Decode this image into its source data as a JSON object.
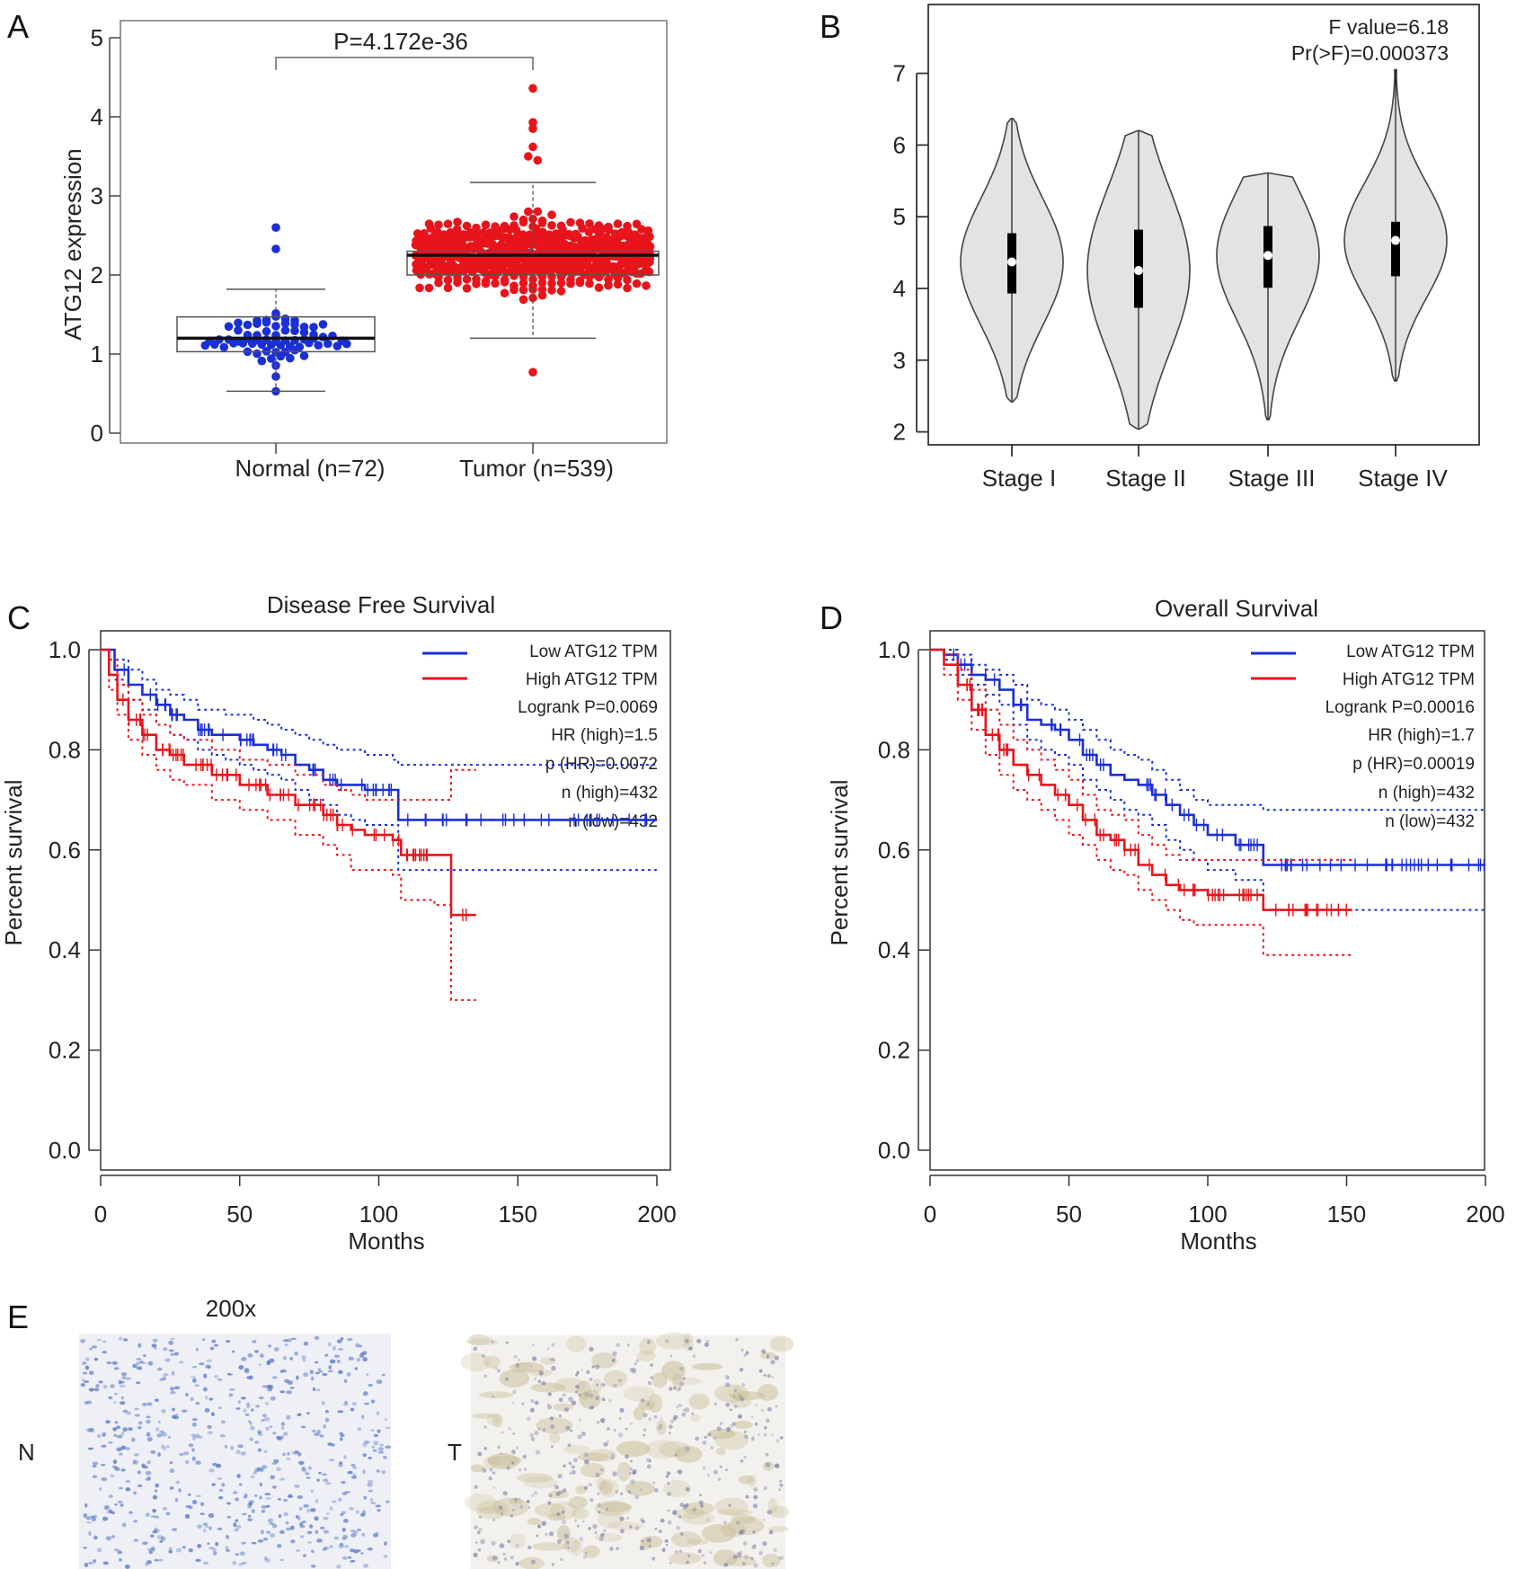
{
  "figure": {
    "panel_letters": {
      "a": "A",
      "b": "B",
      "c": "C",
      "d": "D",
      "e": "E"
    }
  },
  "chart_data": [
    {
      "panel": "A",
      "type": "scatter",
      "subtype": "beeswarm-boxplot",
      "title": "",
      "ylabel": "ATG12 expression",
      "ylim": [
        -0.15,
        5.2
      ],
      "yticks": [
        0,
        1,
        2,
        3,
        4,
        5
      ],
      "categories": [
        "Normal (n=72)",
        "Tumor (n=539)"
      ],
      "annotation": "P=4.172e-36",
      "colors": {
        "Normal (n=72)": "#1a2fd6",
        "Tumor (n=539)": "#e8141b"
      },
      "grid": false,
      "boxes": [
        {
          "category": "Normal (n=72)",
          "whisker_low": 0.53,
          "q1": 1.03,
          "median": 1.2,
          "q3": 1.47,
          "whisker_high": 1.82
        },
        {
          "category": "Tumor (n=539)",
          "whisker_low": 1.2,
          "q1": 2.0,
          "median": 2.25,
          "q3": 2.3,
          "whisker_high": 3.17
        }
      ],
      "points": {
        "Normal (n=72)": {
          "n": 72,
          "min": 0.53,
          "max": 2.6,
          "notable": [
            2.6,
            2.33
          ]
        },
        "Tumor (n=539)": {
          "n": 539,
          "min": 0.77,
          "max": 4.36,
          "notable": [
            4.36,
            3.93,
            3.85,
            3.62,
            3.5,
            3.45
          ]
        }
      }
    },
    {
      "panel": "B",
      "type": "violin",
      "title": "",
      "ylim": [
        1.8,
        7.6
      ],
      "yticks": [
        2,
        3,
        4,
        5,
        6,
        7
      ],
      "categories": [
        "Stage I",
        "Stage II",
        "Stage III",
        "Stage IV"
      ],
      "annotation_lines": [
        "F value=6.18",
        "Pr(>F)=0.000373"
      ],
      "fill": "#e3e3e3",
      "grid": false,
      "series": [
        {
          "name": "Stage I",
          "min": 2.42,
          "q1": 3.93,
          "median": 4.37,
          "q3": 4.77,
          "max": 6.37
        },
        {
          "name": "Stage II",
          "min": 2.04,
          "q1": 3.73,
          "median": 4.25,
          "q3": 4.82,
          "max": 6.2
        },
        {
          "name": "Stage III",
          "min": 2.17,
          "q1": 4.01,
          "median": 4.46,
          "q3": 4.87,
          "max": 5.61
        },
        {
          "name": "Stage IV",
          "min": 2.71,
          "q1": 4.17,
          "median": 4.67,
          "q3": 4.93,
          "max": 7.05
        }
      ]
    },
    {
      "panel": "C",
      "type": "line",
      "subtype": "kaplan-meier",
      "title": "Disease Free Survival",
      "xlabel": "Months",
      "ylabel": "Percent survival",
      "xlim": [
        0,
        205
      ],
      "ylim": [
        0,
        1.0
      ],
      "xticks": [
        0,
        50,
        100,
        150,
        200
      ],
      "yticks": [
        "0.0",
        "0.2",
        "0.4",
        "0.6",
        "0.8",
        "1.0"
      ],
      "legend_position": "top-right",
      "stats": [
        "Logrank P=0.0069",
        "HR (high)=1.5",
        "p (HR)=0.0072",
        "n (high)=432",
        "n (low)=432"
      ],
      "series": [
        {
          "name": "Low ATG12 TPM",
          "color": "#1a2fd6",
          "x": [
            0,
            5,
            10,
            15,
            20,
            25,
            30,
            35,
            40,
            45,
            50,
            55,
            60,
            65,
            70,
            75,
            80,
            85,
            90,
            95,
            100,
            105,
            107,
            110,
            120,
            130,
            140,
            150,
            160,
            170,
            180,
            190,
            200
          ],
          "y": [
            1.0,
            0.96,
            0.93,
            0.91,
            0.89,
            0.87,
            0.86,
            0.84,
            0.83,
            0.83,
            0.82,
            0.81,
            0.8,
            0.79,
            0.77,
            0.76,
            0.74,
            0.73,
            0.73,
            0.72,
            0.72,
            0.72,
            0.66,
            0.66,
            0.66,
            0.66,
            0.66,
            0.66,
            0.66,
            0.66,
            0.66,
            0.66,
            0.66
          ],
          "ci_upper": [
            1.0,
            0.98,
            0.96,
            0.94,
            0.92,
            0.91,
            0.9,
            0.88,
            0.88,
            0.87,
            0.87,
            0.86,
            0.85,
            0.84,
            0.83,
            0.82,
            0.81,
            0.8,
            0.8,
            0.79,
            0.79,
            0.78,
            0.77,
            0.77,
            0.77,
            0.77,
            0.77,
            0.77,
            0.77,
            0.77,
            0.77,
            0.77,
            0.77
          ],
          "ci_lower": [
            1.0,
            0.94,
            0.9,
            0.88,
            0.85,
            0.83,
            0.82,
            0.8,
            0.79,
            0.78,
            0.77,
            0.76,
            0.75,
            0.74,
            0.72,
            0.7,
            0.69,
            0.67,
            0.66,
            0.65,
            0.65,
            0.65,
            0.56,
            0.56,
            0.56,
            0.56,
            0.56,
            0.56,
            0.56,
            0.56,
            0.56,
            0.56,
            0.56
          ]
        },
        {
          "name": "High ATG12 TPM",
          "color": "#e8141b",
          "x": [
            0,
            3,
            6,
            10,
            15,
            20,
            25,
            30,
            40,
            50,
            60,
            70,
            80,
            85,
            90,
            95,
            100,
            105,
            108,
            115,
            120,
            125,
            126,
            130,
            135
          ],
          "y": [
            1.0,
            0.95,
            0.9,
            0.86,
            0.83,
            0.8,
            0.79,
            0.77,
            0.75,
            0.73,
            0.71,
            0.69,
            0.67,
            0.65,
            0.64,
            0.63,
            0.63,
            0.62,
            0.59,
            0.59,
            0.59,
            0.59,
            0.47,
            0.47,
            0.47
          ],
          "ci_upper": [
            1.0,
            0.98,
            0.93,
            0.9,
            0.87,
            0.85,
            0.83,
            0.82,
            0.8,
            0.78,
            0.77,
            0.75,
            0.73,
            0.72,
            0.71,
            0.7,
            0.7,
            0.7,
            0.7,
            0.7,
            0.7,
            0.7,
            0.76,
            0.76,
            0.76
          ],
          "ci_lower": [
            1.0,
            0.92,
            0.87,
            0.82,
            0.79,
            0.76,
            0.74,
            0.73,
            0.7,
            0.68,
            0.66,
            0.63,
            0.61,
            0.59,
            0.56,
            0.56,
            0.56,
            0.55,
            0.5,
            0.5,
            0.49,
            0.49,
            0.3,
            0.3,
            0.3
          ]
        }
      ]
    },
    {
      "panel": "D",
      "type": "line",
      "subtype": "kaplan-meier",
      "title": "Overall Survival",
      "xlabel": "Months",
      "ylabel": "Percent survival",
      "xlim": [
        0,
        205
      ],
      "ylim": [
        0,
        1.0
      ],
      "xticks": [
        0,
        50,
        100,
        150,
        200
      ],
      "yticks": [
        "0.0",
        "0.2",
        "0.4",
        "0.6",
        "0.8",
        "1.0"
      ],
      "legend_position": "top-right",
      "stats": [
        "Logrank P=0.00016",
        "HR (high)=1.7",
        "p (HR)=0.00019",
        "n (high)=432",
        "n (low)=432"
      ],
      "series": [
        {
          "name": "Low ATG12 TPM",
          "color": "#1a2fd6",
          "x": [
            0,
            5,
            10,
            15,
            20,
            25,
            30,
            35,
            40,
            45,
            50,
            55,
            60,
            65,
            70,
            75,
            80,
            85,
            90,
            95,
            100,
            110,
            118,
            120,
            130,
            140,
            150,
            160,
            170,
            180,
            190,
            200
          ],
          "y": [
            1.0,
            0.99,
            0.97,
            0.95,
            0.94,
            0.92,
            0.89,
            0.86,
            0.85,
            0.84,
            0.82,
            0.79,
            0.77,
            0.75,
            0.74,
            0.73,
            0.71,
            0.69,
            0.67,
            0.65,
            0.63,
            0.61,
            0.61,
            0.57,
            0.57,
            0.57,
            0.57,
            0.57,
            0.57,
            0.57,
            0.57,
            0.57
          ],
          "ci_upper": [
            1.0,
            1.0,
            0.99,
            0.97,
            0.96,
            0.95,
            0.93,
            0.9,
            0.89,
            0.88,
            0.86,
            0.84,
            0.82,
            0.8,
            0.79,
            0.78,
            0.76,
            0.74,
            0.72,
            0.7,
            0.69,
            0.69,
            0.69,
            0.68,
            0.68,
            0.68,
            0.68,
            0.68,
            0.68,
            0.68,
            0.68,
            0.68
          ],
          "ci_lower": [
            1.0,
            0.98,
            0.95,
            0.93,
            0.91,
            0.89,
            0.85,
            0.82,
            0.8,
            0.79,
            0.77,
            0.74,
            0.72,
            0.7,
            0.68,
            0.67,
            0.65,
            0.62,
            0.6,
            0.58,
            0.56,
            0.54,
            0.54,
            0.48,
            0.48,
            0.48,
            0.48,
            0.48,
            0.48,
            0.48,
            0.48,
            0.48
          ]
        },
        {
          "name": "High ATG12 TPM",
          "color": "#e8141b",
          "x": [
            0,
            5,
            10,
            15,
            20,
            25,
            30,
            35,
            40,
            45,
            50,
            55,
            60,
            65,
            70,
            75,
            80,
            85,
            90,
            95,
            100,
            110,
            119,
            120,
            130,
            140,
            150,
            152
          ],
          "y": [
            1.0,
            0.97,
            0.93,
            0.88,
            0.83,
            0.8,
            0.77,
            0.75,
            0.73,
            0.71,
            0.69,
            0.66,
            0.63,
            0.62,
            0.6,
            0.57,
            0.55,
            0.53,
            0.52,
            0.52,
            0.51,
            0.51,
            0.51,
            0.48,
            0.48,
            0.48,
            0.48,
            0.48
          ],
          "ci_upper": [
            1.0,
            0.99,
            0.96,
            0.92,
            0.88,
            0.85,
            0.82,
            0.8,
            0.78,
            0.76,
            0.74,
            0.71,
            0.68,
            0.67,
            0.66,
            0.63,
            0.61,
            0.59,
            0.58,
            0.58,
            0.58,
            0.58,
            0.58,
            0.58,
            0.58,
            0.58,
            0.58,
            0.58
          ],
          "ci_lower": [
            1.0,
            0.95,
            0.9,
            0.84,
            0.79,
            0.75,
            0.72,
            0.7,
            0.68,
            0.66,
            0.63,
            0.61,
            0.58,
            0.56,
            0.55,
            0.52,
            0.5,
            0.48,
            0.46,
            0.45,
            0.45,
            0.45,
            0.45,
            0.39,
            0.39,
            0.39,
            0.39,
            0.39
          ]
        }
      ]
    }
  ],
  "ihc": {
    "magnification": "200x",
    "normal_label": "N",
    "tumor_label": "T",
    "normal_tint": "#eef0f6",
    "normal_nuclei_color": "#5f7ec4",
    "tumor_tint": "#f3f1ee",
    "tumor_stain_color": "#c8bd96"
  }
}
